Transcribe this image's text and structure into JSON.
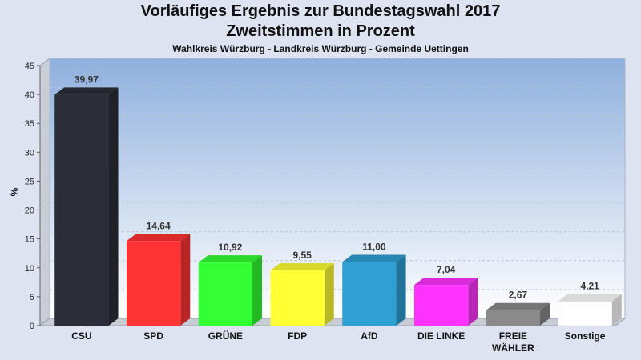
{
  "chart_data": {
    "type": "bar",
    "title": "Vorläufiges Ergebnis zur Bundestagswahl 2017",
    "subtitle": "Zweitstimmen in Prozent",
    "subsubtitle": "Wahlkreis Würzburg - Landkreis Würzburg - Gemeinde Uettingen",
    "ylabel": "%",
    "ylim": [
      0,
      45
    ],
    "yticks": [
      0,
      5,
      10,
      15,
      20,
      25,
      30,
      35,
      40,
      45
    ],
    "grid": true,
    "categories": [
      "CSU",
      "SPD",
      "GRÜNE",
      "FDP",
      "AfD",
      "DIE LINKE",
      "FREIE WÄHLER",
      "Sonstige"
    ],
    "value_labels": [
      "39,97",
      "14,64",
      "10,92",
      "9,55",
      "11,00",
      "7,04",
      "2,67",
      "4,21"
    ],
    "values": [
      39.97,
      14.64,
      10.92,
      9.55,
      11.0,
      7.04,
      2.67,
      4.21
    ],
    "colors": [
      "#2b2e36",
      "#ff3333",
      "#33ff33",
      "#ffff33",
      "#2f9fd4",
      "#ff33ff",
      "#8a8a8a",
      "#ffffff"
    ]
  }
}
